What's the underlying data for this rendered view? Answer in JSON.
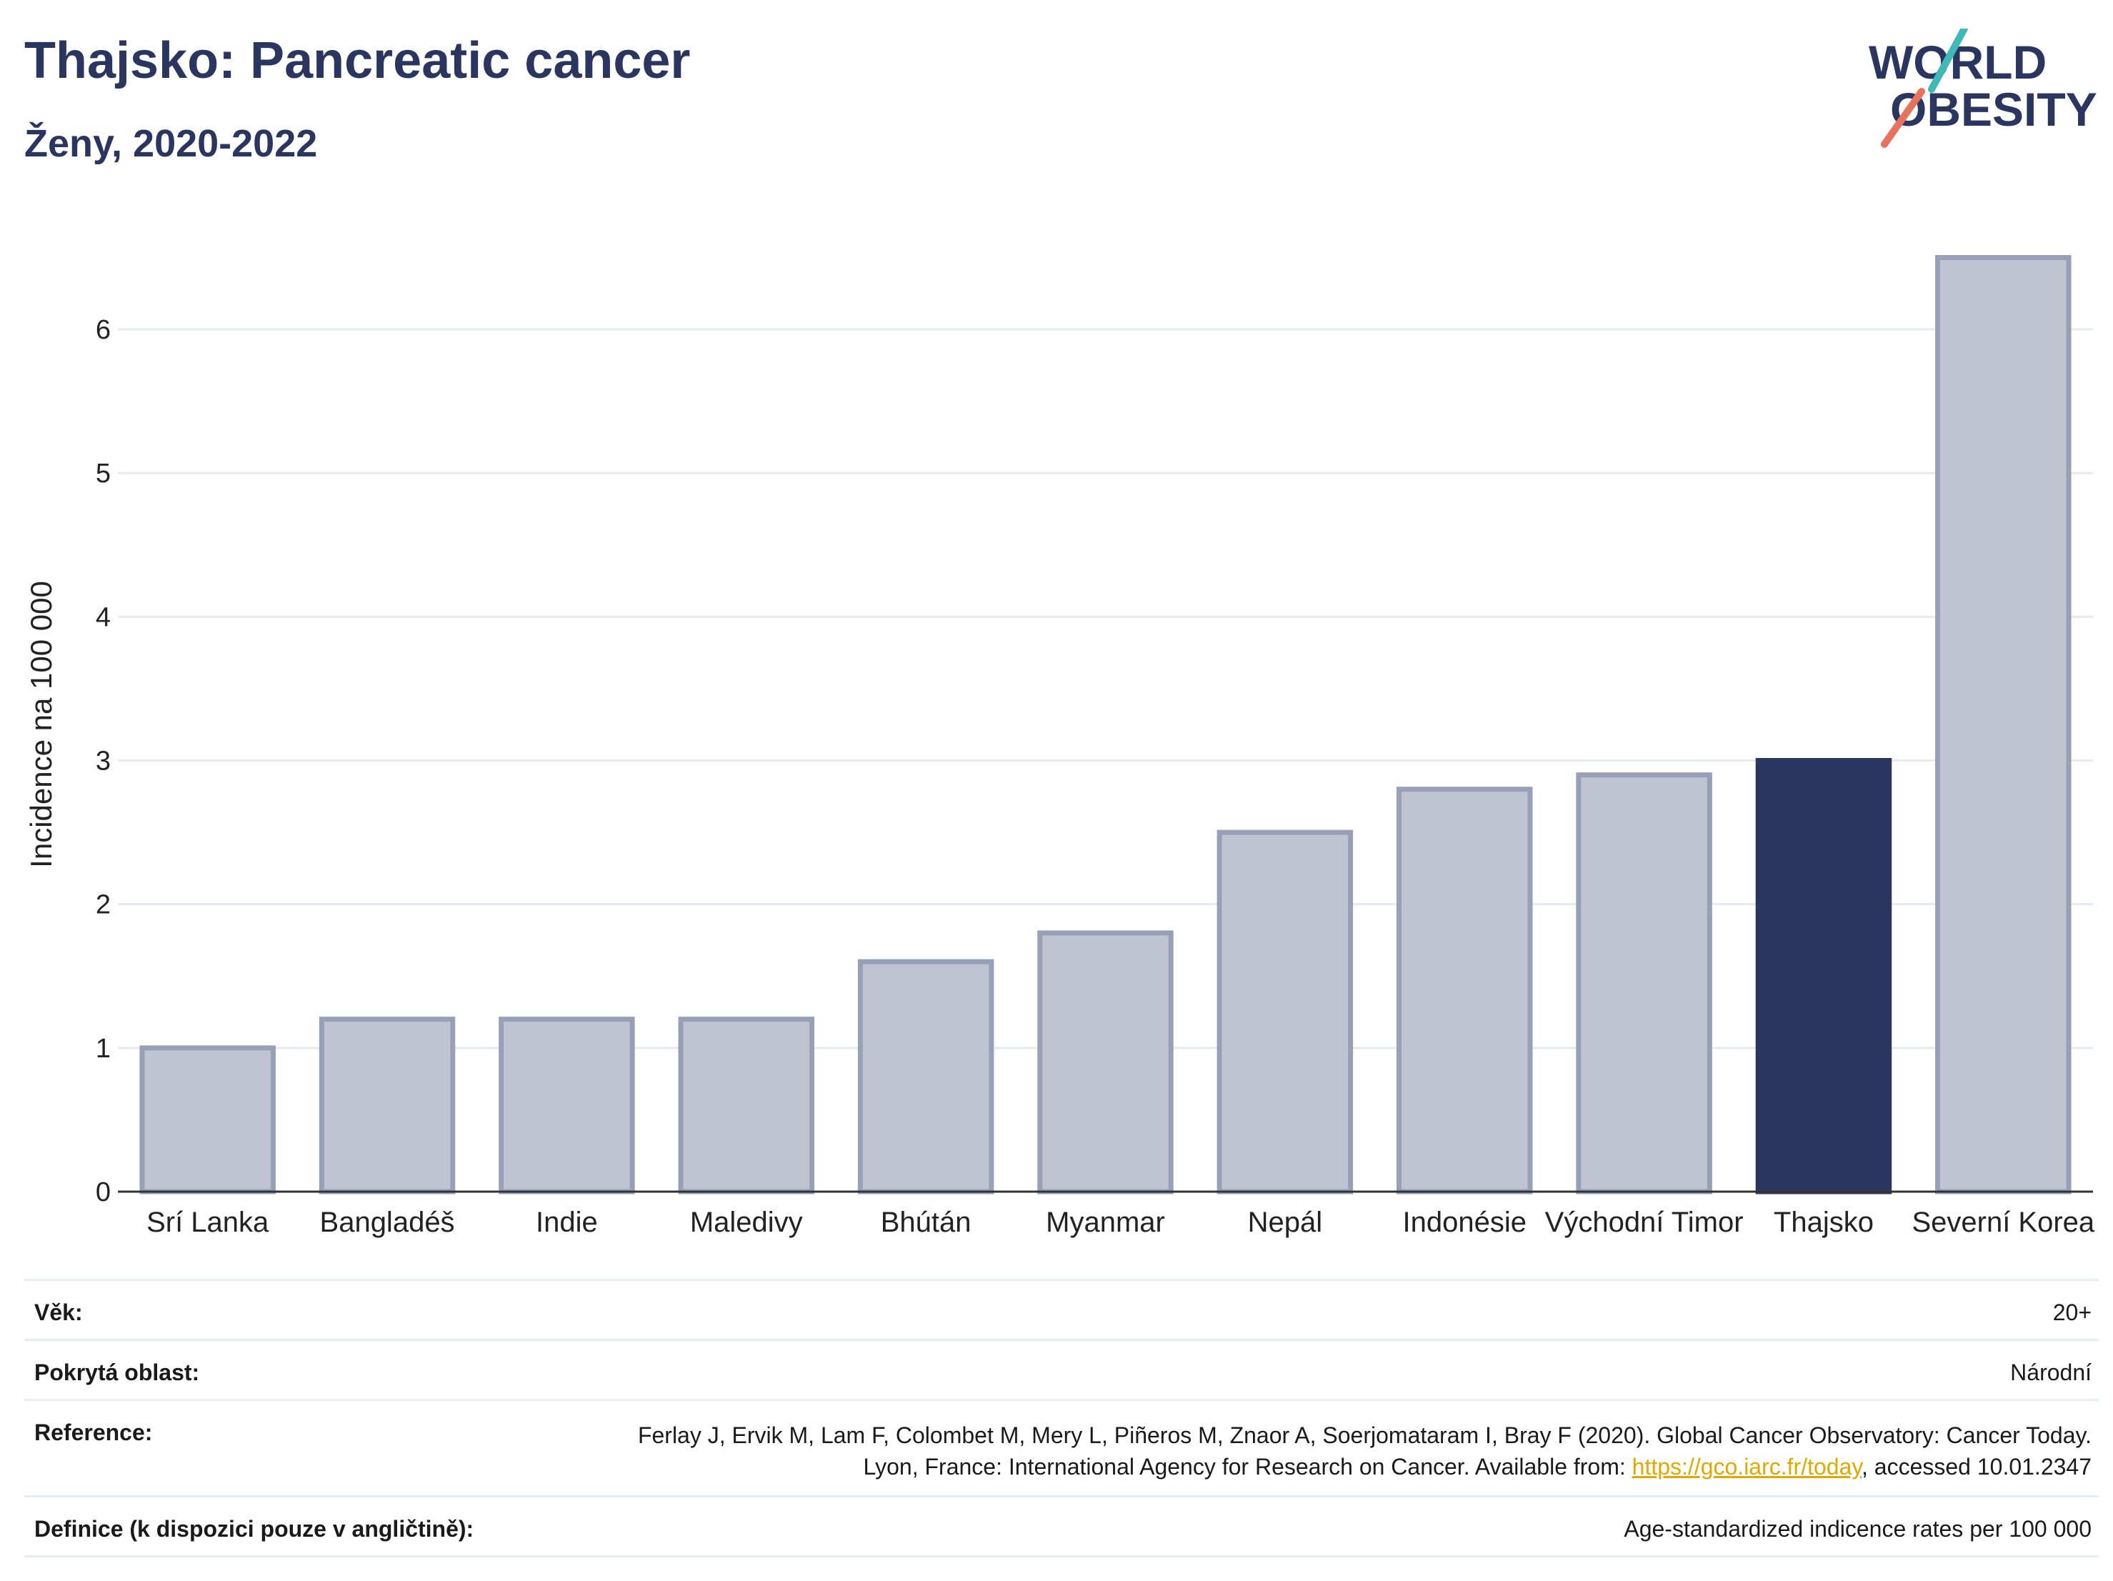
{
  "header": {
    "title": "Thajsko: Pancreatic cancer",
    "subtitle": "Ženy, 2020-2022"
  },
  "logo": {
    "line1": "WORLD",
    "line2": "OBESITY"
  },
  "chart_data": {
    "type": "bar",
    "title": "Thajsko: Pancreatic cancer",
    "subtitle": "Ženy, 2020-2022",
    "xlabel": "",
    "ylabel": "Incidence na 100 000",
    "ylim": [
      0,
      6.9
    ],
    "yticks": [
      0,
      1,
      2,
      3,
      4,
      5,
      6
    ],
    "grid": true,
    "categories": [
      "Srí Lanka",
      "Bangladéš",
      "Indie",
      "Maledivy",
      "Bhútán",
      "Myanmar",
      "Nepál",
      "Indonésie",
      "Východní Timor",
      "Thajsko",
      "Severní Korea"
    ],
    "values": [
      1.0,
      1.2,
      1.2,
      1.2,
      1.6,
      1.8,
      2.5,
      2.8,
      2.9,
      3.0,
      6.5
    ],
    "highlight": "Thajsko",
    "colors": {
      "highlight": "#2a3560",
      "bar": "#c0c4d1",
      "bar_edge": "#98a0b8"
    }
  },
  "table": {
    "age": {
      "label": "Věk:",
      "value": "20+"
    },
    "coverage": {
      "label": "Pokrytá oblast:",
      "value": "Národní"
    },
    "reference": {
      "label": "Reference:",
      "text1": "Ferlay J, Ervik M, Lam F, Colombet M, Mery L, Piñeros M, Znaor A, Soerjomataram I, Bray F (2020). Global Cancer Observatory: Cancer Today. Lyon, France: International Agency for Research on Cancer. Available from: ",
      "link": "https://gco.iarc.fr/today",
      "text2": ", accessed 10.01.2347"
    },
    "definition": {
      "label": "Definice (k dispozici pouze v angličtině):",
      "value": "Age-standardized indicence rates per 100 000"
    }
  }
}
